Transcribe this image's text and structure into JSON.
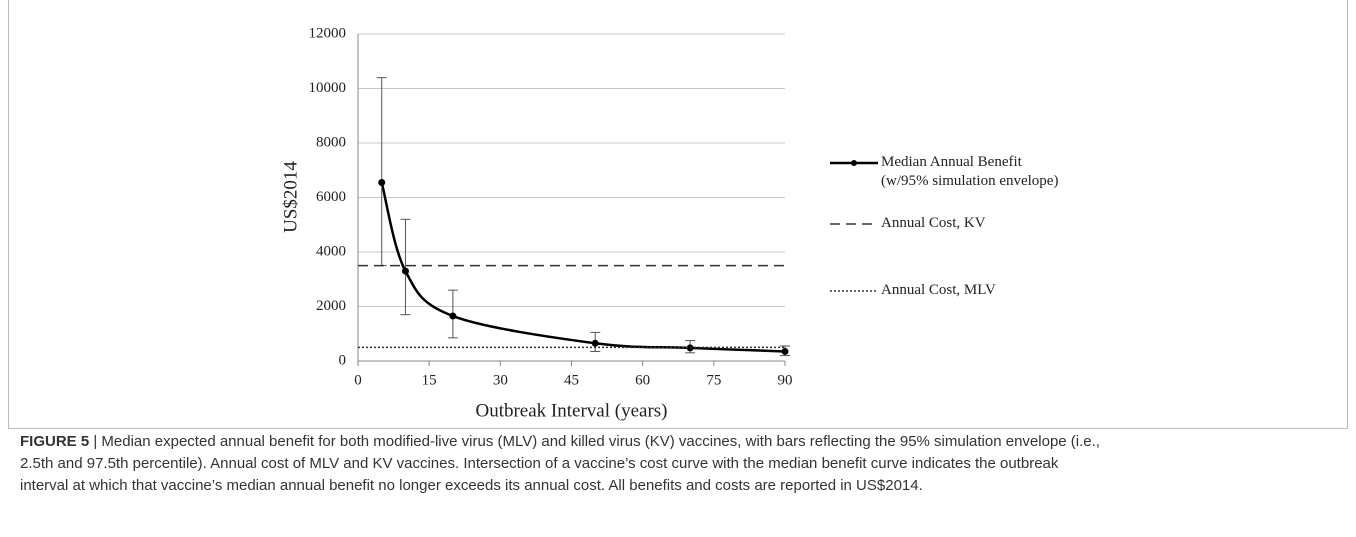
{
  "chart_data": {
    "type": "line",
    "xlabel": "Outbreak Interval (years)",
    "ylabel": "US$2014",
    "xlim": [
      0,
      90
    ],
    "xticks": [
      0,
      15,
      30,
      45,
      60,
      75,
      90
    ],
    "ylim": [
      0,
      12000
    ],
    "yticks": [
      0,
      2000,
      4000,
      6000,
      8000,
      10000,
      12000
    ],
    "grid": true,
    "legend": "right",
    "series": [
      {
        "name": "Median Annual Benefit\n(w/95% simulation envelope)",
        "color": "#000000",
        "style": "solid",
        "smooth": true,
        "x": [
          5,
          10,
          20,
          50,
          70,
          90
        ],
        "values": [
          6550,
          3300,
          1650,
          650,
          480,
          350
        ],
        "lower": [
          3500,
          1700,
          850,
          350,
          300,
          200
        ],
        "upper": [
          10400,
          5200,
          2600,
          1050,
          750,
          550
        ]
      },
      {
        "name": "Annual Cost, KV",
        "color": "#333333",
        "style": "dashed",
        "x": [
          0,
          90
        ],
        "values": [
          3500,
          3500
        ]
      },
      {
        "name": "Annual Cost, MLV",
        "color": "#333333",
        "style": "dotted",
        "x": [
          0,
          90
        ],
        "values": [
          500,
          500
        ]
      }
    ]
  },
  "caption": {
    "label": "FIGURE 5",
    "text": " | Median expected annual benefit for both modified-live virus (MLV) and killed virus (KV) vaccines, with bars reflecting the 95% simulation envelope (i.e.,\n2.5th and 97.5th percentile). Annual cost of MLV and KV vaccines. Intersection of a vaccine’s cost curve with the median benefit curve indicates the outbreak\ninterval at which that vaccine’s median annual benefit no longer exceeds its annual cost. All benefits and costs are reported in US$2014."
  }
}
